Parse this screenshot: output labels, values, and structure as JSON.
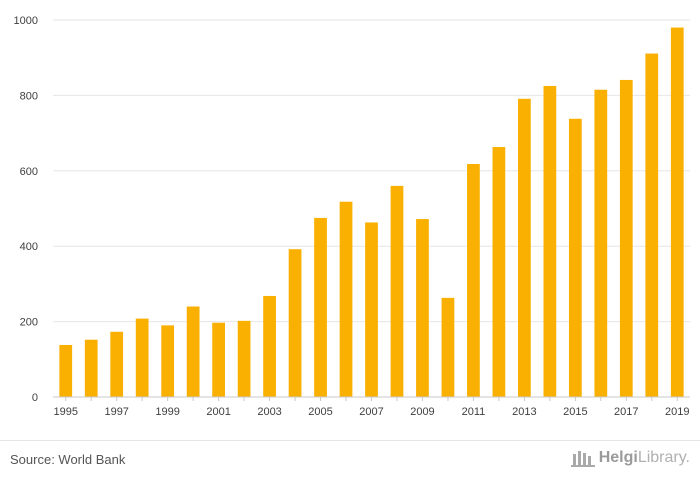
{
  "chart_data": {
    "type": "bar",
    "title": "",
    "xlabel": "",
    "ylabel": "",
    "categories": [
      "1995",
      "1996",
      "1997",
      "1998",
      "1999",
      "2000",
      "2001",
      "2002",
      "2003",
      "2004",
      "2005",
      "2006",
      "2007",
      "2008",
      "2009",
      "2010",
      "2011",
      "2012",
      "2013",
      "2014",
      "2015",
      "2016",
      "2017",
      "2018",
      "2019"
    ],
    "values": [
      138,
      152,
      173,
      208,
      190,
      240,
      197,
      202,
      268,
      392,
      475,
      518,
      463,
      560,
      472,
      263,
      618,
      663,
      791,
      825,
      738,
      815,
      841,
      911,
      980
    ],
    "x_tick_labels": [
      "1995",
      "1997",
      "1999",
      "2001",
      "2003",
      "2005",
      "2007",
      "2009",
      "2011",
      "2013",
      "2015",
      "2017",
      "2019"
    ],
    "y_ticks": [
      0,
      200,
      400,
      600,
      800,
      1000
    ],
    "y_tick_labels": [
      "0",
      "200",
      "400",
      "600",
      "800",
      "1000"
    ],
    "ylim": [
      0,
      1000
    ],
    "grid": true,
    "bar_color": "#f9b000",
    "grid_color": "#e6e6e6"
  },
  "footer": {
    "source": "Source: World Bank",
    "brand_main": "Helgi",
    "brand_sub": "Library."
  }
}
